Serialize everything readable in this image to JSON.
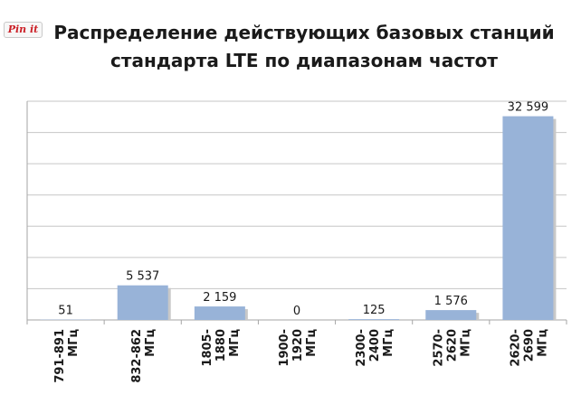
{
  "pin_button": {
    "label": "Pin it"
  },
  "chart_data": {
    "type": "bar",
    "title_lines": [
      "Распределение действующих базовых станций",
      "стандарта LTE по диапазонам частот"
    ],
    "categories": [
      [
        "791-891",
        "МГц"
      ],
      [
        "832-862",
        "МГц"
      ],
      [
        "1805-",
        "1880",
        "МГц"
      ],
      [
        "1900-",
        "1920",
        "МГц"
      ],
      [
        "2300-",
        "2400",
        "МГц"
      ],
      [
        "2570-",
        "2620",
        "МГц"
      ],
      [
        "2620-",
        "2690",
        "МГц"
      ]
    ],
    "values": [
      51,
      5537,
      2159,
      0,
      125,
      1576,
      32599
    ],
    "value_labels": [
      "51",
      "5 537",
      "2 159",
      "0",
      "125",
      "1 576",
      "32 599"
    ],
    "ylim": [
      0,
      35000
    ],
    "grid": true,
    "legend": "none",
    "colors": {
      "bar": "#98b3d8",
      "bar_shadow": "#c8c8c8",
      "grid": "#c6c6c6"
    }
  }
}
